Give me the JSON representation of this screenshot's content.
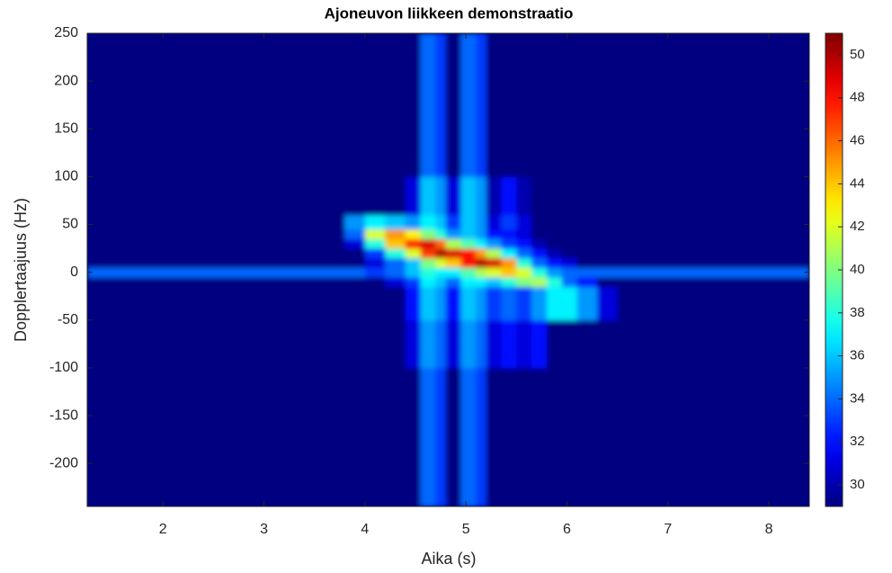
{
  "chart_data": {
    "type": "heatmap",
    "title": "Ajoneuvon liikkeen demonstraatio",
    "x_label": "Aika (s)",
    "y_label": "Dopplertaajuus (Hz)",
    "xlim": [
      1.25,
      8.4
    ],
    "ylim": [
      -245,
      250
    ],
    "xticks": [
      2,
      3,
      4,
      5,
      6,
      7,
      8
    ],
    "yticks": [
      -200,
      -150,
      -100,
      -50,
      0,
      50,
      100,
      150,
      200,
      250
    ],
    "colormap": "jet",
    "clim": [
      29,
      51
    ],
    "cticks": [
      30,
      32,
      34,
      36,
      38,
      40,
      42,
      44,
      46,
      48,
      50
    ],
    "x_edges": [
      1.25,
      3.8,
      4.0,
      4.2,
      4.4,
      4.55,
      4.7,
      4.8,
      4.95,
      5.1,
      5.2,
      5.35,
      5.5,
      5.65,
      5.8,
      5.95,
      6.1,
      6.3,
      6.5,
      8.4
    ],
    "y_edges": [
      -245,
      -100,
      -50,
      -15,
      -5,
      5,
      15,
      25,
      35,
      45,
      60,
      100,
      250
    ],
    "z": [
      [
        29,
        29,
        29,
        29,
        29,
        34,
        33,
        29,
        34,
        33,
        29,
        29,
        29,
        29,
        29,
        29,
        29,
        29,
        29
      ],
      [
        29,
        29,
        29,
        29,
        31,
        35,
        34,
        31,
        35,
        34,
        31,
        32,
        31,
        32,
        29,
        29,
        29,
        29,
        29
      ],
      [
        29,
        29,
        29,
        29,
        32,
        36,
        35,
        32,
        36,
        35,
        33,
        34,
        33,
        35,
        37,
        37,
        35,
        31,
        29
      ],
      [
        29,
        29,
        29,
        31,
        33,
        37,
        36,
        34,
        37,
        37,
        36,
        38,
        40,
        41,
        38,
        34,
        32,
        29,
        29
      ],
      [
        34,
        34,
        33,
        34,
        36,
        38,
        37,
        37,
        39,
        41,
        42,
        44,
        42,
        38,
        35,
        34,
        34,
        34,
        34
      ],
      [
        29,
        29,
        31,
        34,
        36,
        40,
        42,
        44,
        48,
        50,
        49,
        45,
        38,
        34,
        32,
        31,
        29,
        29,
        29
      ],
      [
        29,
        29,
        33,
        38,
        42,
        47,
        50,
        49,
        48,
        45,
        41,
        37,
        34,
        32,
        30,
        29,
        29,
        29,
        29
      ],
      [
        29,
        31,
        38,
        44,
        48,
        49,
        46,
        41,
        39,
        37,
        35,
        33,
        32,
        30,
        29,
        29,
        29,
        29,
        29
      ],
      [
        29,
        34,
        42,
        45,
        43,
        40,
        38,
        35,
        36,
        35,
        32,
        32,
        31,
        29,
        29,
        29,
        29,
        29,
        29
      ],
      [
        29,
        35,
        37,
        36,
        35,
        37,
        36,
        33,
        36,
        35,
        31,
        33,
        31,
        29,
        29,
        29,
        29,
        29,
        29
      ],
      [
        29,
        29,
        29,
        29,
        31,
        36,
        35,
        31,
        36,
        35,
        30,
        32,
        30,
        29,
        29,
        29,
        29,
        29,
        29
      ],
      [
        29,
        29,
        29,
        29,
        29,
        34,
        33,
        29,
        34,
        33,
        29,
        29,
        29,
        29,
        29,
        29,
        29,
        29,
        29
      ]
    ]
  }
}
